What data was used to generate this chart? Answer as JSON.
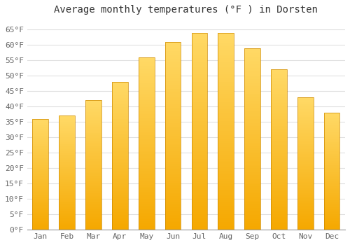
{
  "title": "Average monthly temperatures (°F ) in Dorsten",
  "months": [
    "Jan",
    "Feb",
    "Mar",
    "Apr",
    "May",
    "Jun",
    "Jul",
    "Aug",
    "Sep",
    "Oct",
    "Nov",
    "Dec"
  ],
  "values": [
    36,
    37,
    42,
    48,
    56,
    61,
    64,
    64,
    59,
    52,
    43,
    38
  ],
  "ylim": [
    0,
    68
  ],
  "yticks": [
    0,
    5,
    10,
    15,
    20,
    25,
    30,
    35,
    40,
    45,
    50,
    55,
    60,
    65
  ],
  "ytick_labels": [
    "0°F",
    "5°F",
    "10°F",
    "15°F",
    "20°F",
    "25°F",
    "30°F",
    "35°F",
    "40°F",
    "45°F",
    "50°F",
    "55°F",
    "60°F",
    "65°F"
  ],
  "bg_color": "#ffffff",
  "plot_bg_color": "#ffffff",
  "grid_color": "#e0e0e0",
  "bar_color_bottom": "#F5A800",
  "bar_color_top": "#FFD966",
  "title_fontsize": 10,
  "tick_fontsize": 8,
  "bar_width": 0.6
}
